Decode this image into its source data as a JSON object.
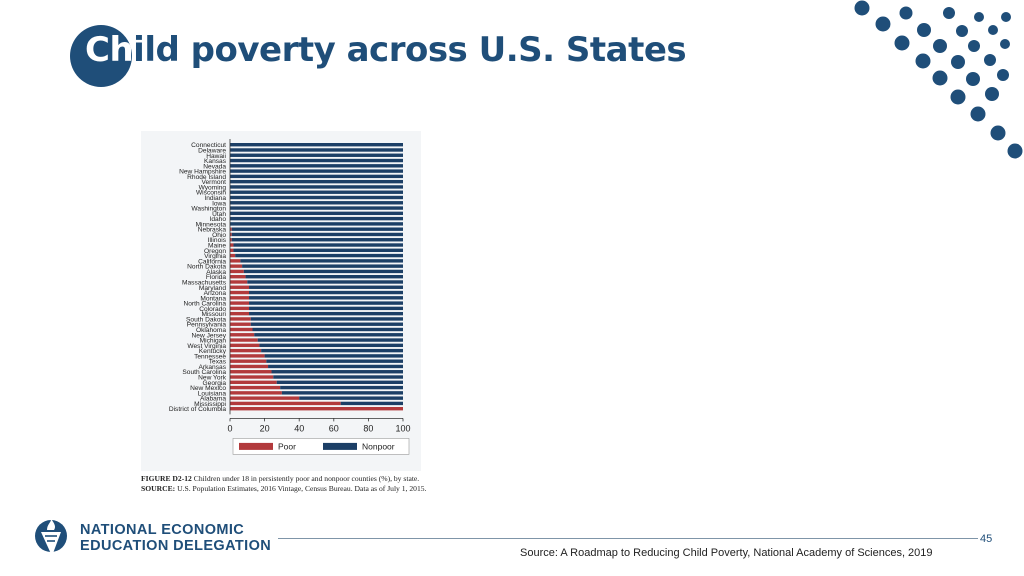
{
  "slide": {
    "title_highlight": "Ch",
    "title_rest": "ild poverty across U.S. States",
    "page_number": "45",
    "source": "Source: A Roadmap to Reducing Child Poverty, National Academy of Sciences, 2019",
    "colors": {
      "brand": "#1f4e79",
      "poor": "#b23a3c",
      "nonpoor": "#1c3f66"
    }
  },
  "logo": {
    "icon": "need-torch-logo-icon",
    "line1": "NATIONAL ECONOMIC",
    "line2": "EDUCATION DELEGATION"
  },
  "caption": {
    "label": "FIGURE D2-12",
    "text": "Children under 18 in persistently poor and nonpoor counties (%), by state.",
    "source_label": "SOURCE:",
    "source_text": "U.S. Population Estimates, 2016 Vintage, Census Bureau. Data as of July 1, 2015."
  },
  "chart_data": {
    "type": "bar",
    "orientation": "horizontal",
    "stacked": true,
    "title": "",
    "xlabel": "",
    "ylabel": "",
    "xlim": [
      0,
      100
    ],
    "xticks": [
      "0",
      "20",
      "40",
      "60",
      "80",
      "100"
    ],
    "categories": [
      "Connecticut",
      "Delaware",
      "Hawaii",
      "Kansas",
      "Nevada",
      "New Hampshire",
      "Rhode Island",
      "Vermont",
      "Wyoming",
      "Wisconsin",
      "Indiana",
      "Iowa",
      "Washington",
      "Utah",
      "Idaho",
      "Minnesota",
      "Nebraska",
      "Ohio",
      "Illinois",
      "Maine",
      "Oregon",
      "Virginia",
      "California",
      "North Dakota",
      "Alaska",
      "Florida",
      "Massachusetts",
      "Maryland",
      "Arizona",
      "Montana",
      "North Carolina",
      "Colorado",
      "Missouri",
      "South Dakota",
      "Pennsylvania",
      "Oklahoma",
      "New Jersey",
      "Michigan",
      "West Virginia",
      "Kentucky",
      "Tennessee",
      "Texas",
      "Arkansas",
      "South Carolina",
      "New York",
      "Georgia",
      "New Mexico",
      "Louisiana",
      "Alabama",
      "Mississippi",
      "District of Columbia"
    ],
    "series": [
      {
        "name": "Poor",
        "color": "#b23a3c",
        "values": [
          0,
          0,
          0,
          0,
          0,
          0,
          0,
          0,
          0,
          0,
          0,
          0,
          0,
          0,
          0,
          0,
          1,
          1,
          1,
          2,
          2,
          3,
          6,
          7,
          8,
          9,
          10,
          11,
          11,
          11,
          11,
          11,
          11,
          12,
          12,
          13,
          14,
          16,
          17,
          18,
          20,
          21,
          22,
          24,
          25,
          27,
          29,
          30,
          40,
          64,
          100
        ]
      },
      {
        "name": "Nonpoor",
        "color": "#1c3f66",
        "values": [
          100,
          100,
          100,
          100,
          100,
          100,
          100,
          100,
          100,
          100,
          100,
          100,
          100,
          100,
          100,
          100,
          99,
          99,
          99,
          98,
          98,
          97,
          94,
          93,
          92,
          91,
          90,
          89,
          89,
          89,
          89,
          89,
          89,
          88,
          88,
          87,
          86,
          84,
          83,
          82,
          80,
          79,
          78,
          76,
          75,
          73,
          71,
          70,
          60,
          36,
          0
        ]
      }
    ],
    "legend": [
      "Poor",
      "Nonpoor"
    ],
    "legend_position": "bottom"
  }
}
